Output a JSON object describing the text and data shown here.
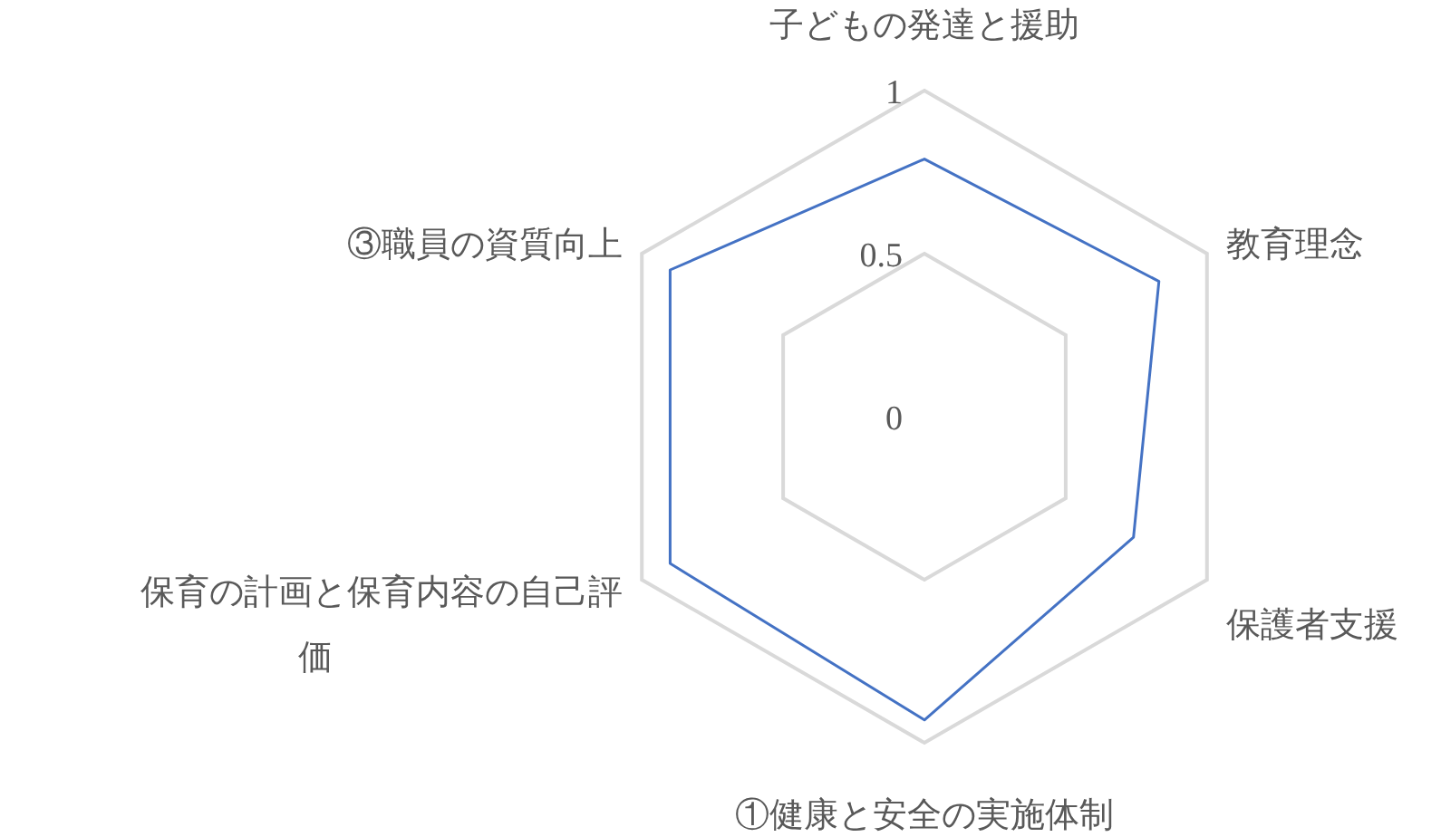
{
  "chart_data": {
    "type": "radar",
    "categories": [
      "子どもの発達と援助",
      "教育理念",
      "保護者支援",
      "①健康と安全の実施体制",
      "保育の計画と保育内容の自己評価",
      "③職員の資質向上"
    ],
    "series": [
      {
        "color": "#4472c4",
        "values": [
          0.79,
          0.83,
          0.74,
          0.93,
          0.9,
          0.9
        ]
      }
    ],
    "ylim": [
      0,
      1
    ],
    "yticks": [
      0,
      0.5,
      1
    ],
    "grid": true,
    "marker": "none",
    "line_style": "solid"
  }
}
